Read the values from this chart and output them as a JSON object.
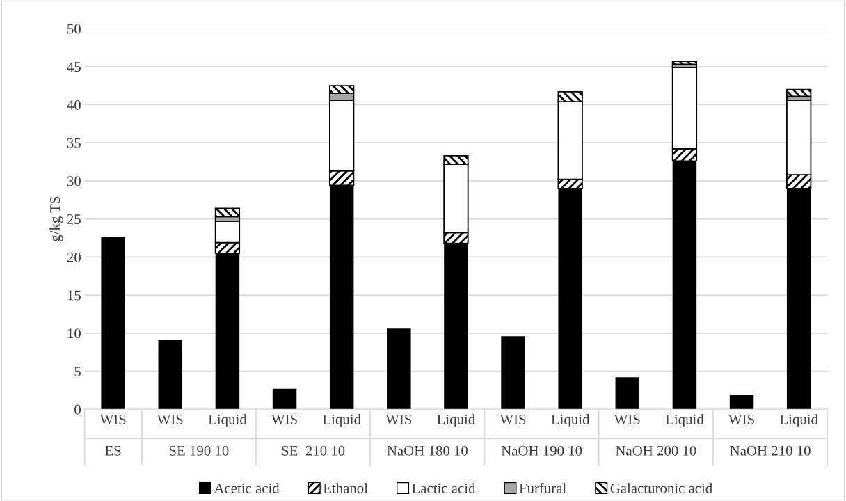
{
  "chart_data": {
    "type": "bar",
    "stacked": true,
    "ylabel": "g/kg TS",
    "ylim": [
      0,
      50
    ],
    "yticks": [
      0,
      5,
      10,
      15,
      20,
      25,
      30,
      35,
      40,
      45,
      50
    ],
    "grid": "y",
    "legend": "bottom",
    "categories": [
      "WIS",
      "WIS",
      "Liquid",
      "WIS",
      "Liquid",
      "WIS",
      "Liquid",
      "WIS",
      "Liquid",
      "WIS",
      "Liquid",
      "WIS",
      "Liquid"
    ],
    "annotations": [
      "ES",
      "SE 190 10",
      "SE  210 10",
      "NaOH 180 10",
      "NaOH 190 10",
      "NaOH 200 10",
      "NaOH 210 10"
    ],
    "series": [
      {
        "name": "Acetic acid",
        "color": "#000000",
        "values": [
          22.6,
          9.1,
          20.5,
          2.7,
          29.4,
          10.6,
          21.8,
          9.6,
          29.0,
          4.2,
          32.6,
          1.9,
          29.0
        ]
      },
      {
        "name": "Ethanol",
        "color": "#000000",
        "values": [
          null,
          null,
          1.4,
          null,
          1.9,
          null,
          1.4,
          null,
          1.2,
          null,
          1.6,
          null,
          1.8
        ]
      },
      {
        "name": "Lactic acid",
        "color": "#ffffff",
        "values": [
          null,
          null,
          2.8,
          null,
          9.3,
          null,
          9.0,
          null,
          10.2,
          null,
          10.7,
          null,
          9.8
        ]
      },
      {
        "name": "Furfural",
        "color": "#a6a6a6",
        "values": [
          null,
          null,
          0.6,
          null,
          0.9,
          null,
          null,
          null,
          null,
          null,
          0.4,
          null,
          0.5
        ]
      },
      {
        "name": "Galacturonic acid",
        "color": "#000000",
        "values": [
          null,
          null,
          1.1,
          null,
          1.0,
          null,
          1.1,
          null,
          1.3,
          null,
          0.4,
          null,
          0.9
        ]
      }
    ]
  }
}
